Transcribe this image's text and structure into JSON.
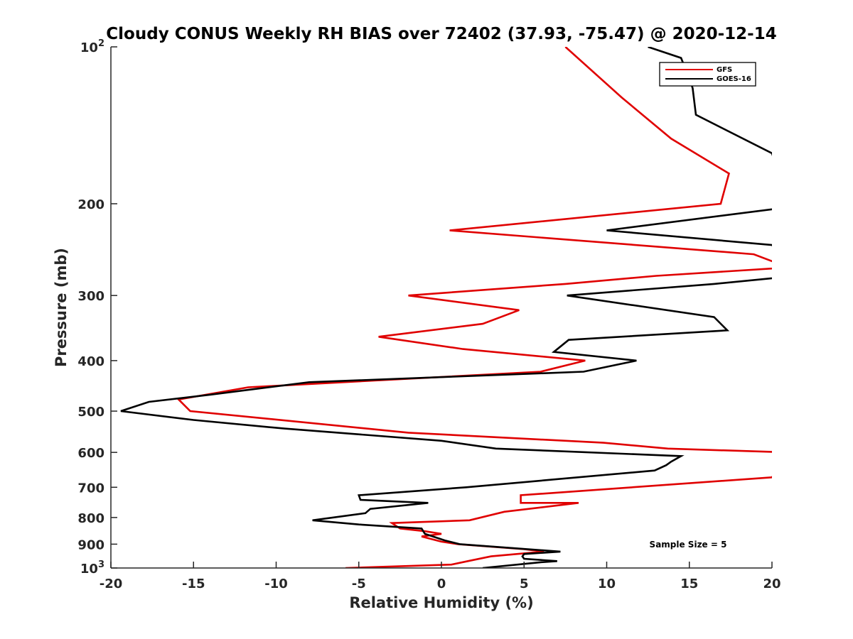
{
  "chart_data": {
    "type": "line",
    "title": "Cloudy CONUS Weekly RH BIAS over 72402 (37.93, -75.47) @ 2020-12-14",
    "xlabel": "Relative Humidity (%)",
    "ylabel": "Pressure (mb)",
    "xlim": [
      -20,
      20
    ],
    "ylim": [
      100,
      1000
    ],
    "yscale": "log",
    "y_reversed": true,
    "x_ticks": [
      "-20",
      "-15",
      "-10",
      "-5",
      "0",
      "5",
      "10",
      "15",
      "20"
    ],
    "y_ticks": [
      {
        "value": 100,
        "base": "10",
        "exp": "2"
      },
      {
        "value": 200,
        "label": "200"
      },
      {
        "value": 300,
        "label": "300"
      },
      {
        "value": 400,
        "label": "400"
      },
      {
        "value": 500,
        "label": "500"
      },
      {
        "value": 600,
        "label": "600"
      },
      {
        "value": 700,
        "label": "700"
      },
      {
        "value": 800,
        "label": "800"
      },
      {
        "value": 900,
        "label": "900"
      },
      {
        "value": 1000,
        "base": "10",
        "exp": "3"
      }
    ],
    "grid": false,
    "legend_position": "top-right",
    "annotation": "Sample Size = 5",
    "series": [
      {
        "name": "GFS",
        "color": "#e00000",
        "points": [
          {
            "x": 7.5,
            "y": 100
          },
          {
            "x": 10.9,
            "y": 125
          },
          {
            "x": 13.9,
            "y": 150
          },
          {
            "x": 17.4,
            "y": 175
          },
          {
            "x": 16.9,
            "y": 200
          },
          {
            "x": 0.5,
            "y": 225
          },
          {
            "x": 18.9,
            "y": 250
          },
          {
            "x": 21,
            "y": 265
          },
          {
            "x": 13,
            "y": 275
          },
          {
            "x": 7.5,
            "y": 285
          },
          {
            "x": -2,
            "y": 300
          },
          {
            "x": 4.7,
            "y": 320
          },
          {
            "x": 2.5,
            "y": 340
          },
          {
            "x": -3.8,
            "y": 360
          },
          {
            "x": 1.3,
            "y": 380
          },
          {
            "x": 8.7,
            "y": 400
          },
          {
            "x": 6,
            "y": 420
          },
          {
            "x": -11.7,
            "y": 450
          },
          {
            "x": -15.9,
            "y": 475
          },
          {
            "x": -15.2,
            "y": 500
          },
          {
            "x": -2,
            "y": 550
          },
          {
            "x": 9.8,
            "y": 575
          },
          {
            "x": 13.7,
            "y": 590
          },
          {
            "x": 21,
            "y": 600
          },
          {
            "x": 20,
            "y": 670
          },
          {
            "x": 4.8,
            "y": 725
          },
          {
            "x": 4.8,
            "y": 750
          },
          {
            "x": 8.3,
            "y": 750
          },
          {
            "x": 3.8,
            "y": 780
          },
          {
            "x": 1.7,
            "y": 810
          },
          {
            "x": -3,
            "y": 820
          },
          {
            "x": -2.5,
            "y": 840
          },
          {
            "x": -1,
            "y": 850
          },
          {
            "x": 0,
            "y": 860
          },
          {
            "x": -1.2,
            "y": 870
          },
          {
            "x": 0,
            "y": 890
          },
          {
            "x": 1,
            "y": 900
          },
          {
            "x": 5,
            "y": 920
          },
          {
            "x": 6.2,
            "y": 930
          },
          {
            "x": 3,
            "y": 950
          },
          {
            "x": 1.6,
            "y": 970
          },
          {
            "x": 0.6,
            "y": 985
          },
          {
            "x": -5.8,
            "y": 1000
          }
        ]
      },
      {
        "name": "GOES-16",
        "color": "#000000",
        "points": [
          {
            "x": 12.5,
            "y": 100
          },
          {
            "x": 14.5,
            "y": 105
          },
          {
            "x": 15,
            "y": 115
          },
          {
            "x": 15.2,
            "y": 120
          },
          {
            "x": 15.4,
            "y": 135
          },
          {
            "x": 20,
            "y": 160
          },
          {
            "x": 21,
            "y": 200
          },
          {
            "x": 20,
            "y": 205
          },
          {
            "x": 10,
            "y": 225
          },
          {
            "x": 20,
            "y": 240
          },
          {
            "x": 21,
            "y": 260
          },
          {
            "x": 21,
            "y": 275
          },
          {
            "x": 20,
            "y": 278
          },
          {
            "x": 16.5,
            "y": 285
          },
          {
            "x": 7.6,
            "y": 300
          },
          {
            "x": 16.5,
            "y": 330
          },
          {
            "x": 17.3,
            "y": 350
          },
          {
            "x": 7.7,
            "y": 365
          },
          {
            "x": 6.8,
            "y": 385
          },
          {
            "x": 11.8,
            "y": 400
          },
          {
            "x": 8.6,
            "y": 420
          },
          {
            "x": -8,
            "y": 440
          },
          {
            "x": -14,
            "y": 465
          },
          {
            "x": -17.7,
            "y": 480
          },
          {
            "x": -19.4,
            "y": 500
          },
          {
            "x": -15,
            "y": 520
          },
          {
            "x": -9.5,
            "y": 540
          },
          {
            "x": 0,
            "y": 570
          },
          {
            "x": 3.3,
            "y": 590
          },
          {
            "x": 14.5,
            "y": 610
          },
          {
            "x": 13.9,
            "y": 625
          },
          {
            "x": 13.6,
            "y": 635
          },
          {
            "x": 12.9,
            "y": 650
          },
          {
            "x": 1.5,
            "y": 700
          },
          {
            "x": -5,
            "y": 725
          },
          {
            "x": -4.9,
            "y": 740
          },
          {
            "x": -0.8,
            "y": 750
          },
          {
            "x": -4.3,
            "y": 770
          },
          {
            "x": -4.6,
            "y": 785
          },
          {
            "x": -7.8,
            "y": 810
          },
          {
            "x": -5,
            "y": 825
          },
          {
            "x": -1.2,
            "y": 840
          },
          {
            "x": -1,
            "y": 860
          },
          {
            "x": 0.2,
            "y": 885
          },
          {
            "x": 1.1,
            "y": 900
          },
          {
            "x": 7.2,
            "y": 930
          },
          {
            "x": 5,
            "y": 940
          },
          {
            "x": 4.9,
            "y": 950
          },
          {
            "x": 5,
            "y": 960
          },
          {
            "x": 7,
            "y": 970
          },
          {
            "x": 6,
            "y": 975
          },
          {
            "x": 2.5,
            "y": 1000
          }
        ]
      }
    ]
  }
}
